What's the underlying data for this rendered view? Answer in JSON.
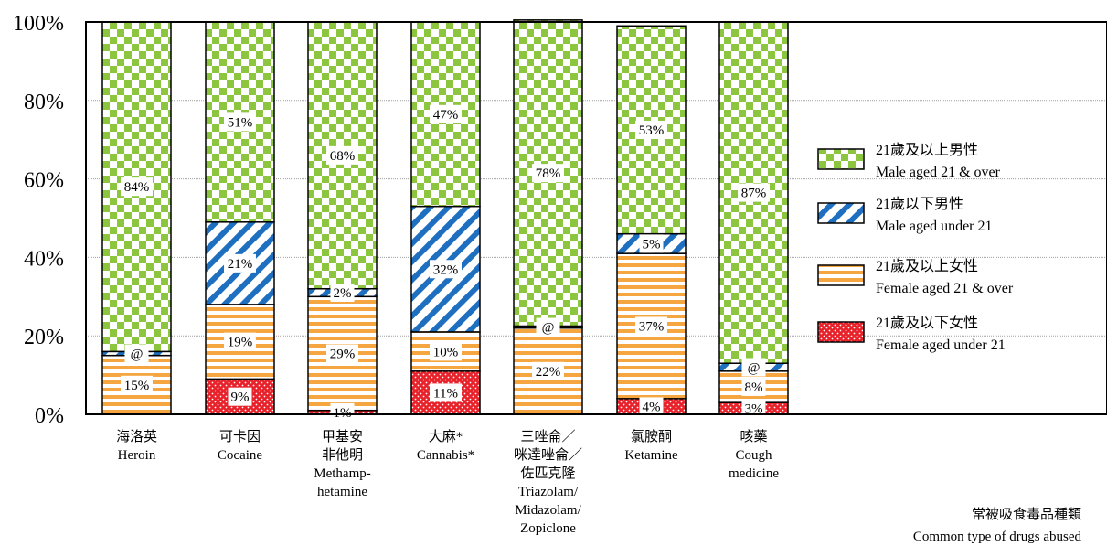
{
  "chart_data": {
    "type": "bar",
    "stacked": true,
    "percent": true,
    "ylim": [
      0,
      100
    ],
    "yticks": [
      "0%",
      "20%",
      "40%",
      "60%",
      "80%",
      "100%"
    ],
    "grid": true,
    "legend_position": "right",
    "categories": [
      {
        "lines": [
          "海洛英",
          "Heroin"
        ]
      },
      {
        "lines": [
          "可卡因",
          "Cocaine"
        ]
      },
      {
        "lines": [
          "甲基安",
          "非他明",
          "Methamp-",
          "hetamine"
        ]
      },
      {
        "lines": [
          "大麻*",
          "Cannabis*"
        ]
      },
      {
        "lines": [
          "三唑侖／",
          "咪達唑侖／",
          "佐匹克隆",
          "Triazolam/",
          "Midazolam/",
          "Zopiclone"
        ]
      },
      {
        "lines": [
          "氯胺酮",
          "Ketamine"
        ]
      },
      {
        "lines": [
          "咳藥",
          "Cough",
          "medicine"
        ]
      }
    ],
    "series": [
      {
        "key": "f_u21",
        "name_zh": "21歲及以下女性",
        "name_en": "Female aged under 21",
        "color": "#e8222a",
        "values": [
          0,
          9,
          1,
          11,
          0,
          4,
          3
        ],
        "labels": [
          "",
          "9%",
          "1%",
          "11%",
          "",
          "4%",
          "3%"
        ]
      },
      {
        "key": "f_21",
        "name_zh": "21歲及以上女性",
        "name_en": "Female aged 21 & over",
        "color": "#f5a640",
        "values": [
          15,
          19,
          29,
          10,
          22,
          37,
          8
        ],
        "labels": [
          "15%",
          "19%",
          "29%",
          "10%",
          "22%",
          "37%",
          "8%"
        ]
      },
      {
        "key": "m_u21",
        "name_zh": "21歲以下男性",
        "name_en": "Male aged under 21",
        "color": "#1f6fc0",
        "values": [
          1,
          21,
          2,
          32,
          0.5,
          5,
          2
        ],
        "labels": [
          "@",
          "21%",
          "2%",
          "32%",
          "@",
          "5%",
          "@"
        ]
      },
      {
        "key": "m_21",
        "name_zh": "21歲及以上男性",
        "name_en": "Male aged 21 & over",
        "color": "#8cc63f",
        "values": [
          84,
          51,
          68,
          47,
          78,
          53,
          87
        ],
        "labels": [
          "84%",
          "51%",
          "68%",
          "47%",
          "78%",
          "53%",
          "87%"
        ]
      }
    ],
    "legend_order": [
      "m_21",
      "m_u21",
      "f_21",
      "f_u21"
    ],
    "xlabel_zh": "常被吸食毒品種類",
    "xlabel_en": "Common type of drugs abused"
  }
}
